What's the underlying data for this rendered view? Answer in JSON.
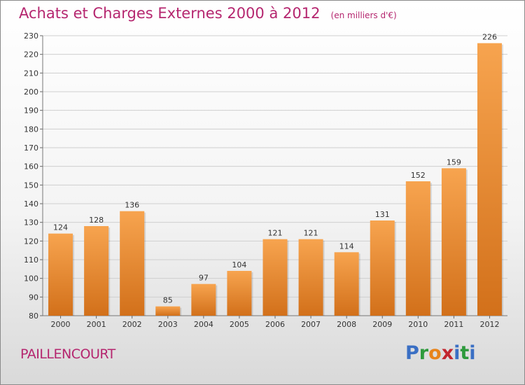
{
  "header": {
    "title": "Achats et Charges Externes 2000 à 2012",
    "unit": "(en milliers d'€)"
  },
  "footer": {
    "town": "PAILLENCOURT",
    "logo_letters": [
      "P",
      "r",
      "o",
      "x",
      "i",
      "t",
      "i"
    ]
  },
  "colors": {
    "title": "#b5266f",
    "bar_top": "#f7a44f",
    "bar_bottom": "#d2701a",
    "grid": "#cfcfcf",
    "logo": [
      "#3a6fc4",
      "#2e9a3c",
      "#e8841b",
      "#c2262e",
      "#3a6fc4",
      "#2e9a3c",
      "#3a6fc4"
    ]
  },
  "chart_data": {
    "type": "bar",
    "title": "Achats et Charges Externes 2000 à 2012",
    "categories": [
      "2000",
      "2001",
      "2002",
      "2003",
      "2004",
      "2005",
      "2006",
      "2007",
      "2008",
      "2009",
      "2010",
      "2011",
      "2012"
    ],
    "values": [
      124,
      128,
      136,
      85,
      97,
      104,
      121,
      121,
      114,
      131,
      152,
      159,
      226
    ],
    "xlabel": "",
    "ylabel": "",
    "ylim": [
      80,
      230
    ],
    "yticks": [
      80,
      90,
      100,
      110,
      120,
      130,
      140,
      150,
      160,
      170,
      180,
      190,
      200,
      210,
      220,
      230
    ],
    "grid": true,
    "data_labels": true
  }
}
